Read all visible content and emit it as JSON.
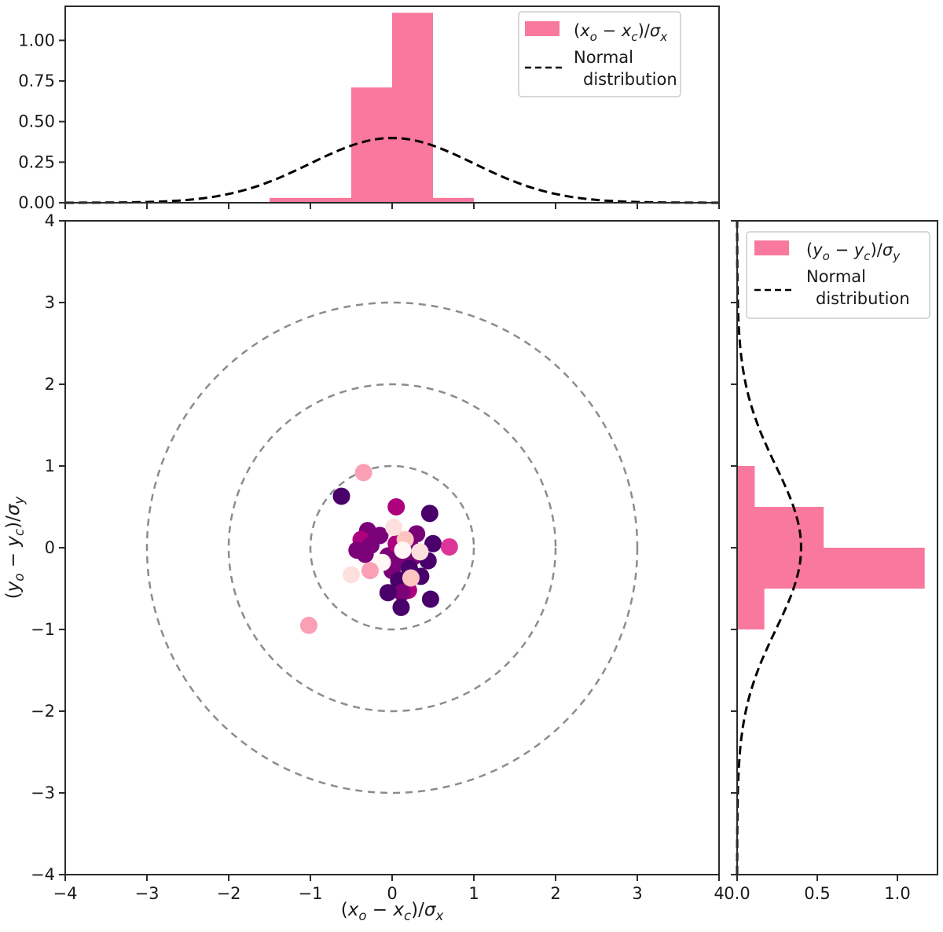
{
  "figure": {
    "background": "#ffffff",
    "colors": {
      "histogram_fill": "#f8789e",
      "normal_curve": "#000000",
      "reference_circles": "#8c8c8c",
      "spine": "#2b2b2b",
      "tick_label": "#1a1a1a",
      "legend_border": "#cccccc",
      "scatter_palette_name": "RdPu"
    },
    "labels": {
      "x_expr_plain": "(xo − xc)/σx",
      "y_expr_plain": "(yo − yc)/σy",
      "x_expr": [
        [
          "(",
          ""
        ],
        [
          "x",
          "i"
        ],
        [
          "o",
          "is"
        ],
        [
          " − ",
          ""
        ],
        [
          "x",
          "i"
        ],
        [
          "c",
          "is"
        ],
        [
          ")/",
          ""
        ],
        [
          "σ",
          "i"
        ],
        [
          "x",
          "is"
        ]
      ],
      "y_expr": [
        [
          "(",
          ""
        ],
        [
          "y",
          "i"
        ],
        [
          "o",
          "is"
        ],
        [
          " − ",
          ""
        ],
        [
          "y",
          "i"
        ],
        [
          "c",
          "is"
        ],
        [
          ")/",
          ""
        ],
        [
          "σ",
          "i"
        ],
        [
          "y",
          "is"
        ]
      ],
      "normal_distribution_lines": [
        "Normal",
        "distribution"
      ]
    }
  },
  "chart_data": [
    {
      "id": "top_histogram",
      "type": "bar",
      "orientation": "vertical",
      "xlim": [
        -4,
        4
      ],
      "ylim": [
        0,
        1.21
      ],
      "xticks": [
        -4,
        -3,
        -2,
        -1,
        0,
        1,
        2,
        3,
        4
      ],
      "xtick_labels": [],
      "yticks": [
        0,
        0.25,
        0.5,
        0.75,
        1.0
      ],
      "ytick_labels": [
        "0.00",
        "0.25",
        "0.50",
        "0.75",
        "1.00"
      ],
      "grid": false,
      "series_label_plain": "(xo − xc)/σx",
      "bins": [
        {
          "from": -1.5,
          "to": -1.0,
          "density": 0.03
        },
        {
          "from": -1.0,
          "to": -0.5,
          "density": 0.03
        },
        {
          "from": -0.5,
          "to": 0.0,
          "density": 0.71
        },
        {
          "from": 0.0,
          "to": 0.5,
          "density": 1.17
        },
        {
          "from": 0.5,
          "to": 1.0,
          "density": 0.03
        }
      ],
      "overlay_curve": {
        "name": "standard_normal_pdf",
        "label": "Normal distribution",
        "peak": 0.4
      },
      "legend_position": "upper right"
    },
    {
      "id": "main_scatter",
      "type": "scatter",
      "xlim": [
        -4,
        4
      ],
      "ylim": [
        -4,
        4
      ],
      "xticks": [
        -4,
        -3,
        -2,
        -1,
        0,
        1,
        2,
        3,
        4
      ],
      "xtick_labels": [
        "−4",
        "−3",
        "−2",
        "−1",
        "0",
        "1",
        "2",
        "3",
        "4"
      ],
      "yticks": [
        4,
        3,
        2,
        1,
        0,
        -1,
        -2,
        -3,
        -4
      ],
      "ytick_labels": [
        "4",
        "3",
        "2",
        "1",
        "0",
        "−1",
        "−2",
        "−3",
        "−4"
      ],
      "grid": false,
      "xlabel_plain": "(xo − xc)/σx",
      "ylabel_plain": "(yo − yc)/σy",
      "reference_circles": {
        "center": [
          0,
          0
        ],
        "radii": [
          1,
          2,
          3
        ],
        "style": "dashed"
      },
      "points": [
        {
          "x": -0.3,
          "y": 0.21,
          "color": "#7a0177"
        },
        {
          "x": -0.15,
          "y": 0.15,
          "color": "#7a0177"
        },
        {
          "x": -0.38,
          "y": 0.1,
          "color": "#ae017e"
        },
        {
          "x": -0.26,
          "y": 0.03,
          "color": "#7a0177"
        },
        {
          "x": -0.43,
          "y": -0.03,
          "color": "#7a0177"
        },
        {
          "x": -0.33,
          "y": -0.08,
          "color": "#7a0177"
        },
        {
          "x": -0.05,
          "y": -0.1,
          "color": "#7a0177"
        },
        {
          "x": 0.05,
          "y": 0.05,
          "color": "#ae017e"
        },
        {
          "x": 0.22,
          "y": 0.02,
          "color": "#7a0177"
        },
        {
          "x": 0.1,
          "y": -0.15,
          "color": "#7a0177"
        },
        {
          "x": 0.25,
          "y": -0.12,
          "color": "#7a0177"
        },
        {
          "x": 0.0,
          "y": -0.28,
          "color": "#7a0177"
        },
        {
          "x": 0.21,
          "y": -0.25,
          "color": "#49006a"
        },
        {
          "x": 0.08,
          "y": -0.4,
          "color": "#49006a"
        },
        {
          "x": 0.35,
          "y": -0.35,
          "color": "#49006a"
        },
        {
          "x": 0.44,
          "y": -0.16,
          "color": "#49006a"
        },
        {
          "x": 0.5,
          "y": 0.05,
          "color": "#49006a"
        },
        {
          "x": 0.46,
          "y": 0.42,
          "color": "#49006a"
        },
        {
          "x": -0.62,
          "y": 0.63,
          "color": "#49006a"
        },
        {
          "x": 0.05,
          "y": 0.5,
          "color": "#ae017e"
        },
        {
          "x": 0.7,
          "y": 0.01,
          "color": "#dd3497"
        },
        {
          "x": 0.3,
          "y": 0.17,
          "color": "#7a0177"
        },
        {
          "x": 0.2,
          "y": -0.52,
          "color": "#ae017e"
        },
        {
          "x": 0.12,
          "y": -0.55,
          "color": "#7a0177"
        },
        {
          "x": -0.05,
          "y": -0.55,
          "color": "#49006a"
        },
        {
          "x": 0.47,
          "y": -0.63,
          "color": "#49006a"
        },
        {
          "x": 0.11,
          "y": -0.73,
          "color": "#49006a"
        },
        {
          "x": 0.02,
          "y": 0.25,
          "color": "#fde0dd"
        },
        {
          "x": 0.16,
          "y": 0.1,
          "color": "#fcc5c0"
        },
        {
          "x": 0.13,
          "y": -0.03,
          "color": "#fff7f3"
        },
        {
          "x": 0.34,
          "y": -0.05,
          "color": "#fde0dd"
        },
        {
          "x": -0.12,
          "y": -0.18,
          "color": "#fff7f3"
        },
        {
          "x": -0.27,
          "y": -0.28,
          "color": "#fa9fb5"
        },
        {
          "x": -0.5,
          "y": -0.33,
          "color": "#fde0dd"
        },
        {
          "x": 0.23,
          "y": -0.37,
          "color": "#fcc5c0"
        },
        {
          "x": -0.35,
          "y": 0.92,
          "color": "#fa9fb5"
        },
        {
          "x": -1.02,
          "y": -0.95,
          "color": "#fa9fb5"
        }
      ]
    },
    {
      "id": "right_histogram",
      "type": "bar",
      "orientation": "horizontal",
      "xlim": [
        0,
        1.25
      ],
      "ylim": [
        -4,
        4
      ],
      "xticks": [
        0,
        0.5,
        1.0
      ],
      "xtick_labels": [
        "0.0",
        "0.5",
        "1.0"
      ],
      "yticks": [
        -4,
        -3,
        -2,
        -1,
        0,
        1,
        2,
        3,
        4
      ],
      "ytick_labels": [],
      "grid": false,
      "series_label_plain": "(yo − yc)/σy",
      "bins": [
        {
          "from": 0.5,
          "to": 1.0,
          "density": 0.11
        },
        {
          "from": 0.0,
          "to": 0.5,
          "density": 0.54
        },
        {
          "from": -0.5,
          "to": 0.0,
          "density": 1.17
        },
        {
          "from": -1.0,
          "to": -0.5,
          "density": 0.17
        }
      ],
      "overlay_curve": {
        "name": "standard_normal_pdf",
        "label": "Normal distribution",
        "peak": 0.4
      },
      "legend_position": "upper right"
    }
  ]
}
